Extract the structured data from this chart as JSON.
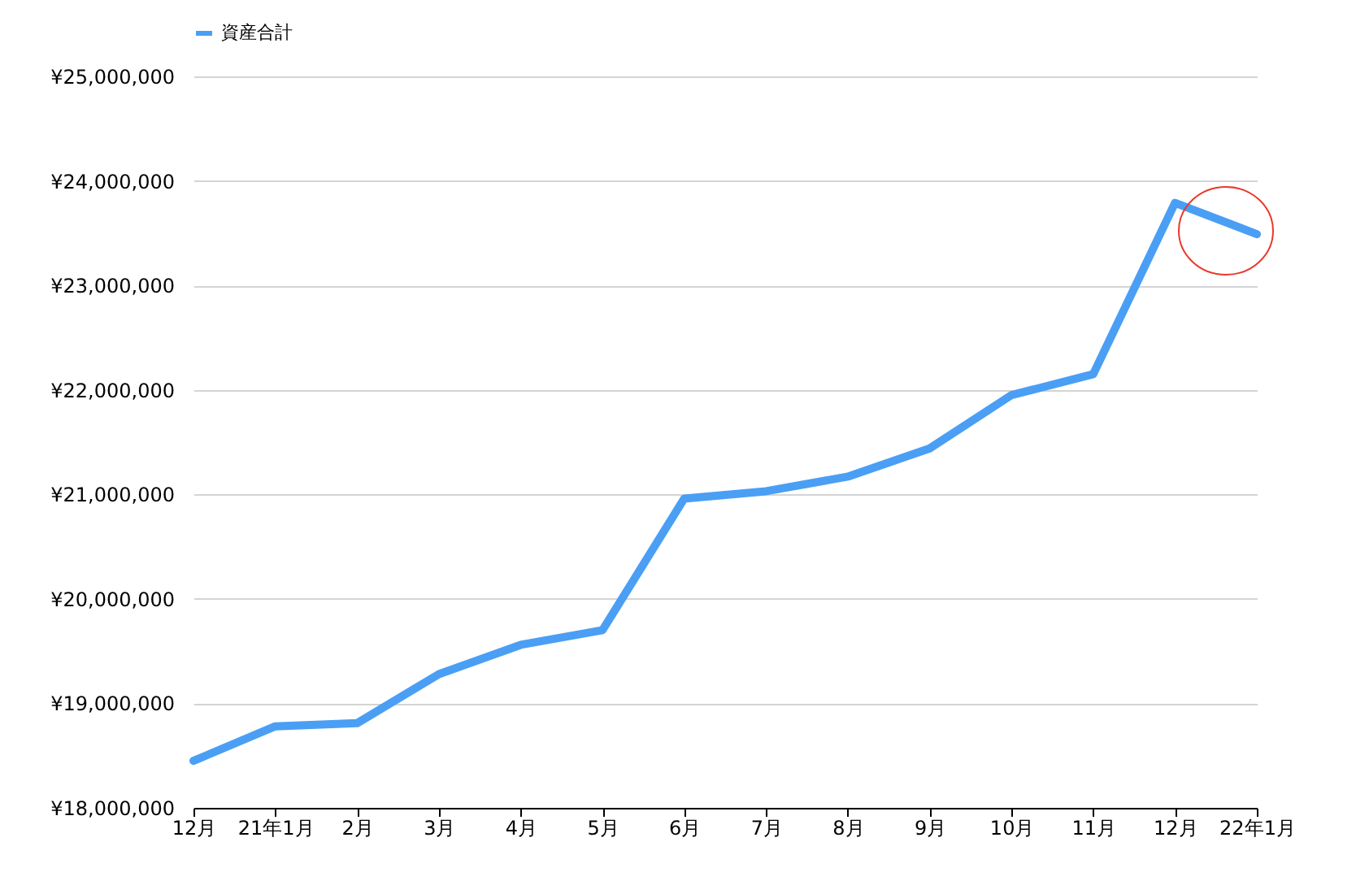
{
  "chart_data": {
    "type": "line",
    "categories": [
      "12月",
      "21年1月",
      "2月",
      "3月",
      "4月",
      "5月",
      "6月",
      "7月",
      "8月",
      "9月",
      "10月",
      "11月",
      "12月",
      "22年1月"
    ],
    "series": [
      {
        "name": "資産合計",
        "color": "#4a9ff5",
        "values": [
          18450000,
          18780000,
          18810000,
          19280000,
          19560000,
          19700000,
          20960000,
          21030000,
          21170000,
          21440000,
          21950000,
          22150000,
          23790000,
          23490000
        ]
      }
    ],
    "ylim": [
      18000000,
      25000000
    ],
    "yticks": [
      {
        "value": 18000000,
        "label": "¥18,000,000"
      },
      {
        "value": 19000000,
        "label": "¥19,000,000"
      },
      {
        "value": 20000000,
        "label": "¥20,000,000"
      },
      {
        "value": 21000000,
        "label": "¥21,000,000"
      },
      {
        "value": 22000000,
        "label": "¥22,000,000"
      },
      {
        "value": 23000000,
        "label": "¥23,000,000"
      },
      {
        "value": 24000000,
        "label": "¥24,000,000"
      },
      {
        "value": 25000000,
        "label": "¥25,000,000"
      }
    ],
    "grid": "y",
    "legend": "top",
    "marker": "none",
    "line_style": "solid"
  }
}
